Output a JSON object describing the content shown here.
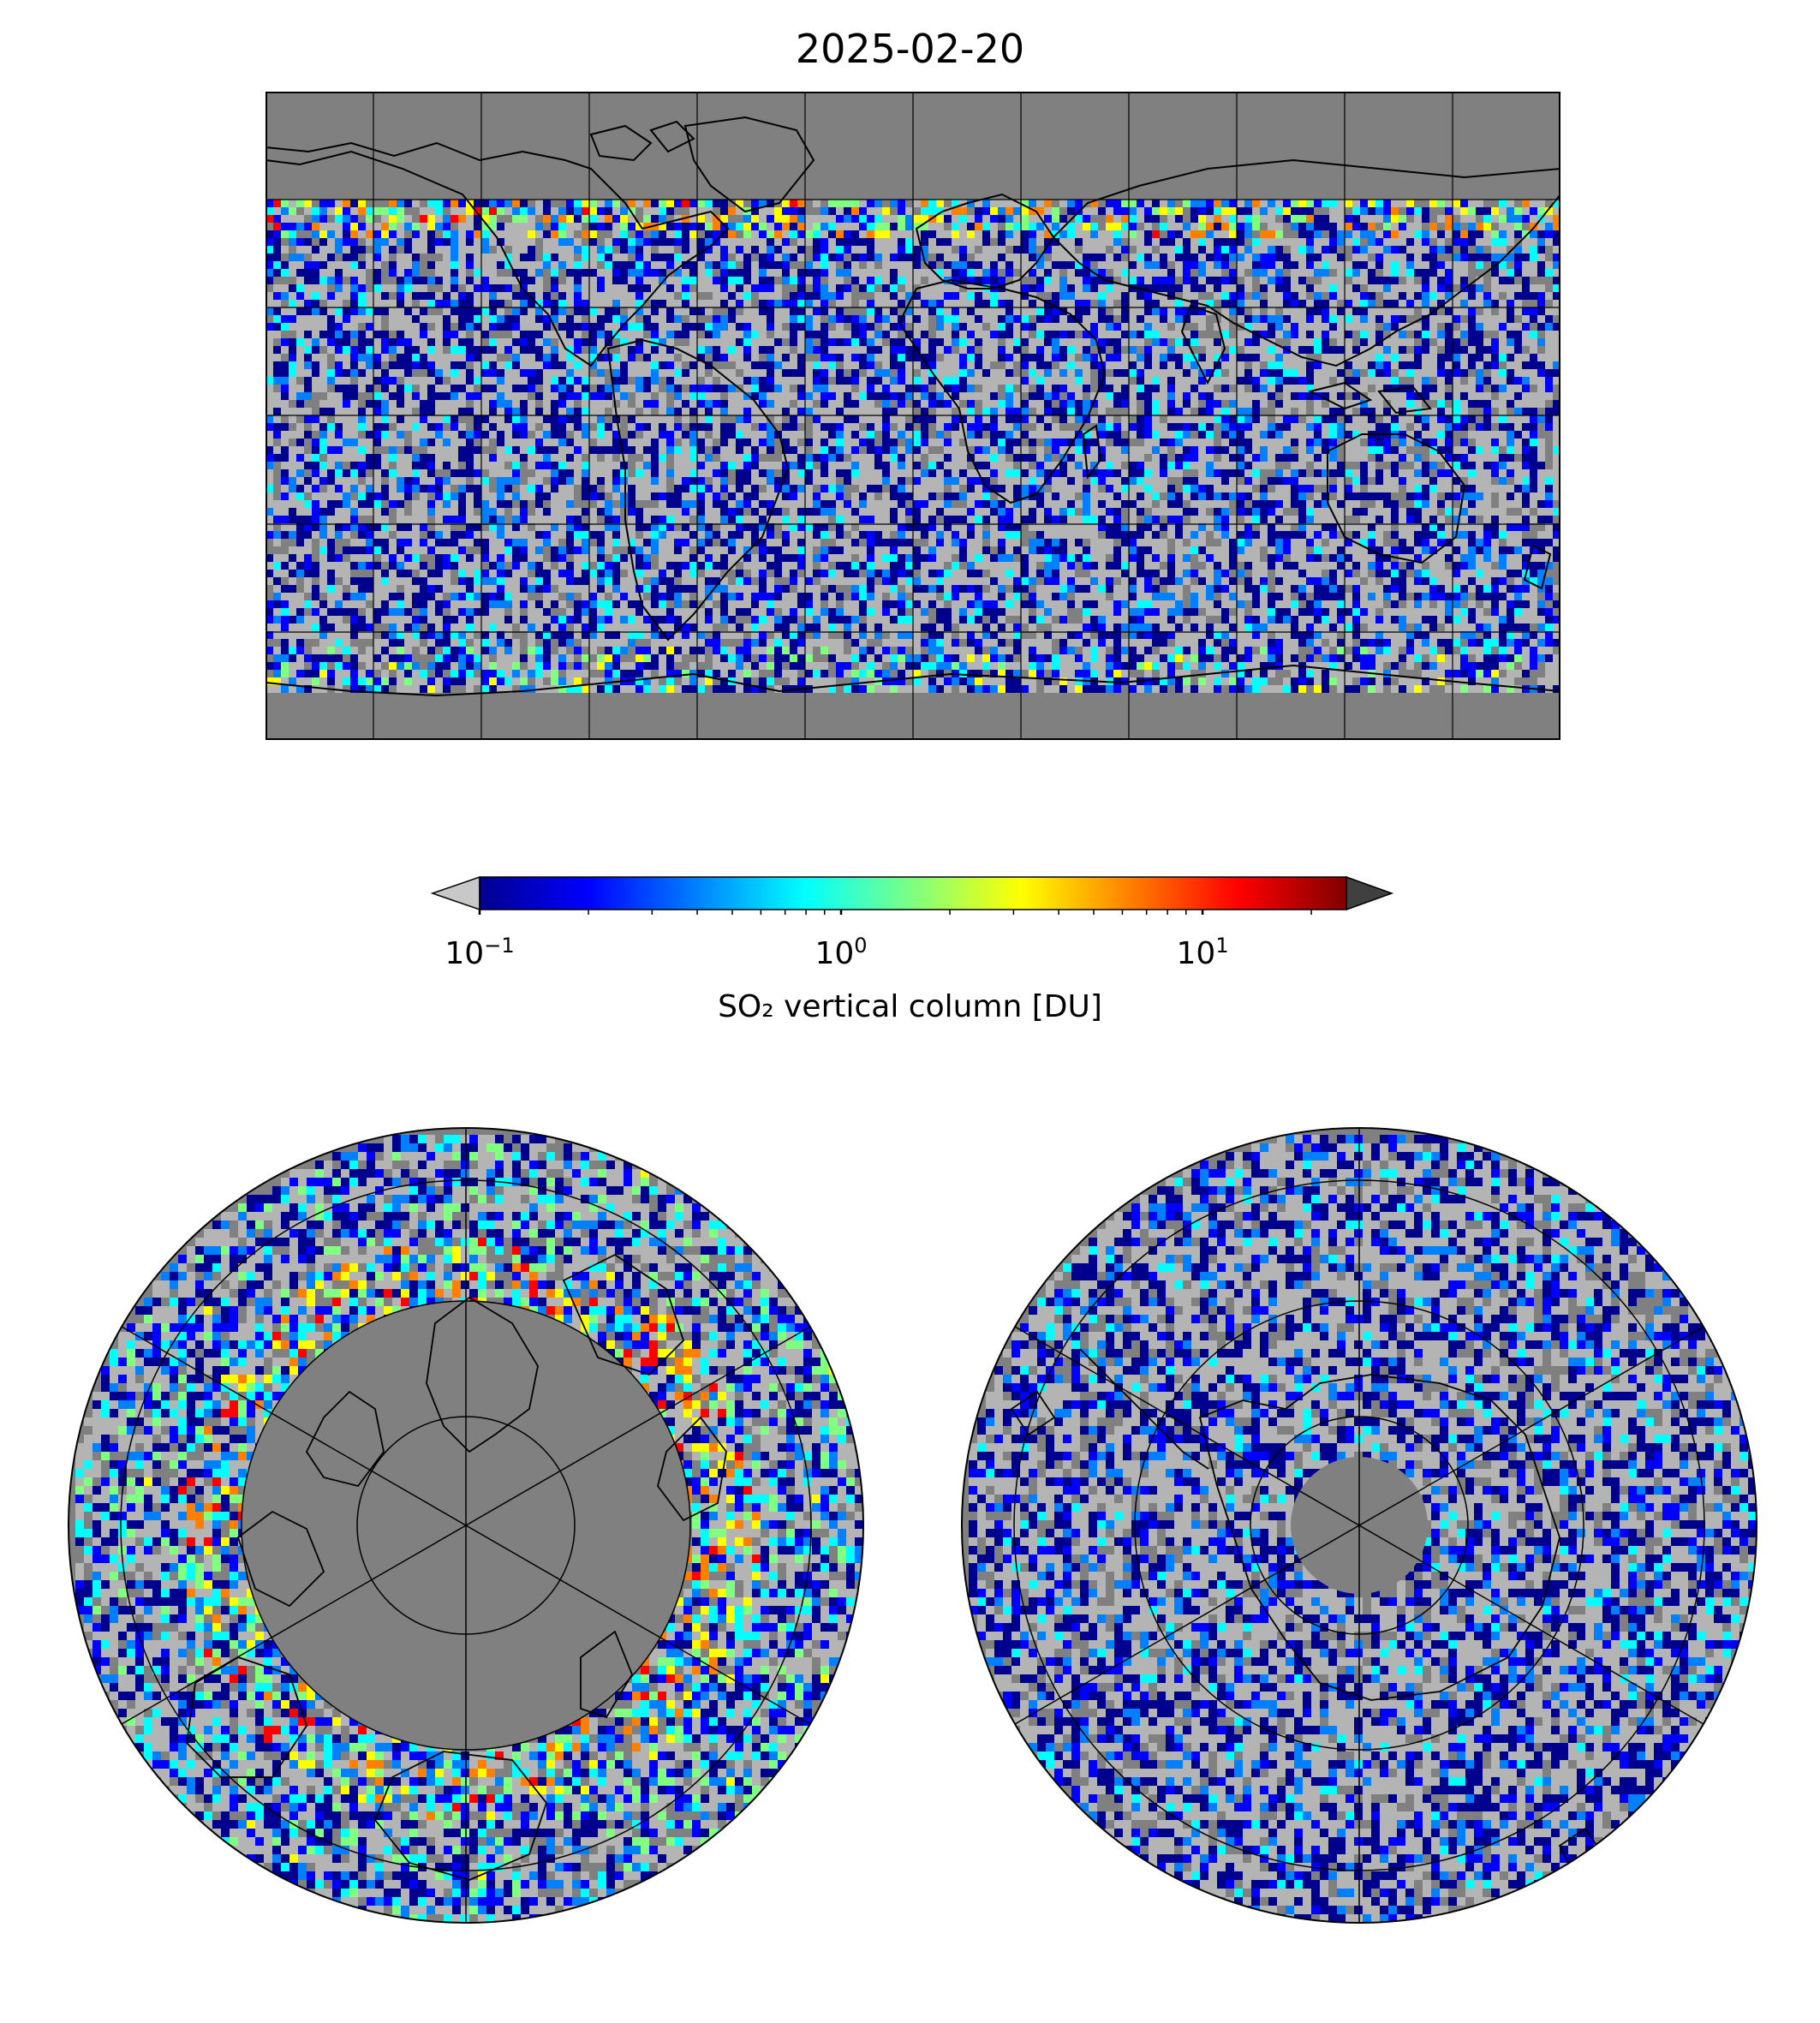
{
  "title": "2025-02-20",
  "colorbar": {
    "label": "SO₂ vertical column [DU]",
    "scale": "log",
    "range": [
      0.1,
      25
    ],
    "ticks": [
      {
        "base": "10",
        "exp": "−1",
        "value": 0.1
      },
      {
        "base": "10",
        "exp": "0",
        "value": 1
      },
      {
        "base": "10",
        "exp": "1",
        "value": 10
      }
    ],
    "colormap": [
      "#00008f",
      "#0000ff",
      "#0080ff",
      "#00ffff",
      "#80ff80",
      "#ffff00",
      "#ff8000",
      "#ff0000",
      "#800000"
    ],
    "under_color": "#c8c8c8",
    "over_color": "#404040"
  },
  "colors": {
    "no_data": "#808080",
    "background_low": "#b4b4b4",
    "coastline": "#000000",
    "grid": "#000000"
  },
  "maps": [
    {
      "name": "world",
      "projection": "plate-carree"
    },
    {
      "name": "north-polar",
      "projection": "north-polar-stereographic"
    },
    {
      "name": "south-polar",
      "projection": "south-polar-stereographic"
    }
  ]
}
